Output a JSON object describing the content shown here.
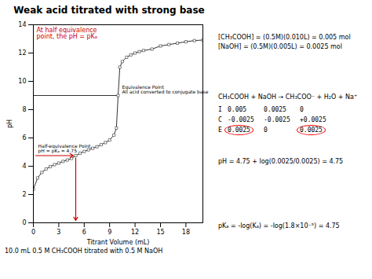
{
  "chart_data": {
    "type": "line",
    "title": "Weak acid titrated with strong base",
    "xlabel": "Titrant Volume (mL)",
    "ylabel": "pH",
    "x": [
      0.0,
      0.5,
      1.0,
      1.5,
      2.0,
      2.5,
      3.0,
      3.5,
      4.0,
      4.5,
      5.0,
      5.5,
      6.0,
      6.5,
      7.0,
      7.5,
      8.0,
      8.5,
      9.0,
      9.5,
      9.8,
      10.0,
      10.2,
      10.5,
      11.0,
      11.5,
      12.0,
      12.5,
      13.0,
      14.0,
      15.0,
      16.0,
      17.0,
      18.0,
      19.0,
      20.0
    ],
    "values": [
      2.37,
      3.17,
      3.56,
      3.8,
      3.97,
      4.11,
      4.22,
      4.34,
      4.44,
      4.55,
      4.75,
      4.92,
      5.04,
      5.16,
      5.27,
      5.38,
      5.52,
      5.67,
      5.85,
      6.2,
      6.7,
      9.0,
      11.0,
      11.4,
      11.7,
      11.87,
      12.0,
      12.1,
      12.18,
      12.28,
      12.5,
      12.6,
      12.7,
      12.8,
      12.88,
      12.92
    ],
    "color": "#333333",
    "marker": "square",
    "xlim": [
      0,
      20
    ],
    "ylim": [
      0,
      14
    ],
    "xticks": [
      0,
      3,
      6,
      9,
      12,
      15,
      18
    ],
    "yticks": [
      0,
      2,
      4,
      6,
      8,
      10,
      12,
      14
    ],
    "grid": false,
    "background_color": "#ffffff",
    "equivalence_point": {
      "x": 10.0,
      "y": 9.0,
      "label": "Equivalence Point\nAll acid converted to conjugate base"
    },
    "half_equivalence_point": {
      "x": 5.0,
      "y": 4.75,
      "label": "Half-equivalence Point\npH = pKₐ = 4.75",
      "color": "#cc0000"
    },
    "annotation": {
      "text": "At half equivalence\npoint, the pH = pKₐ",
      "color": "#cc0000"
    },
    "notes_top": [
      "[CH₃COOH] = (0.5M)(0.010L) = 0.005 mol",
      "[NaOH] = (0.5M)(0.005L) = 0.0025 mol"
    ],
    "ice_table": {
      "equation": "CH₃COOH + NaOH → CH₃COO⁻ + H₂O + Na⁺",
      "rows": [
        [
          "I",
          "0.005",
          "0.0025",
          "0"
        ],
        [
          "C",
          "-0.0025",
          "-0.0025",
          "+0.0025"
        ],
        [
          "E",
          "0.0025",
          "0",
          "0.0025"
        ]
      ],
      "highlight_color": "red"
    },
    "notes_bottom": [
      "pH = 4.75 + log(0.0025/0.0025) = 4.75",
      "pKₐ = -log(Kₐ) = -log(1.8×10⁻⁵) = 4.75"
    ],
    "caption": "10.0 mL 0.5 M CH₃COOH titrated with 0.5 M NaOH"
  }
}
